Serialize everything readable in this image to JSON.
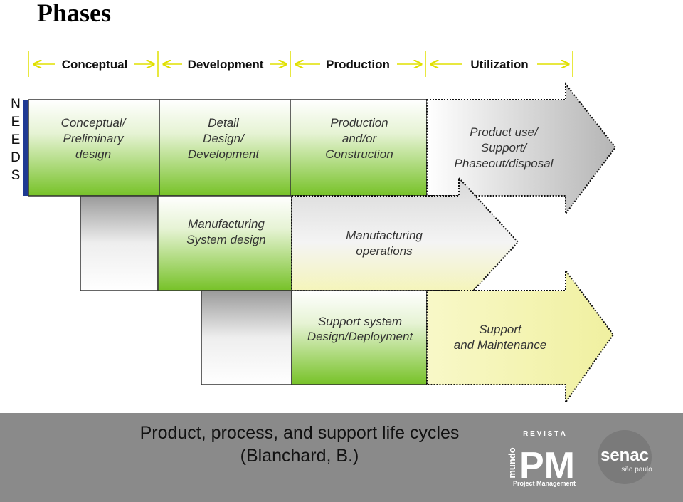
{
  "header": {
    "title": "Phases"
  },
  "phases": [
    "Conceptual",
    "Development",
    "Production",
    "Utilization"
  ],
  "needs": [
    "N",
    "E",
    "E",
    "D",
    "S"
  ],
  "rows": [
    {
      "boxes": [
        {
          "lines": [
            "Conceptual/",
            "Preliminary",
            "design"
          ]
        },
        {
          "lines": [
            "Detail",
            "Design/",
            "Development"
          ]
        },
        {
          "lines": [
            "Production",
            "and/or",
            "Construction"
          ]
        },
        {
          "lines": [
            "Product use/",
            "Support/",
            "Phaseout/disposal"
          ]
        }
      ]
    },
    {
      "boxes": [
        {
          "lines": [
            "Manufacturing",
            "System design"
          ]
        },
        {
          "lines": [
            "Manufacturing",
            "operations"
          ]
        }
      ]
    },
    {
      "boxes": [
        {
          "lines": [
            "Support system",
            "Design/Deployment"
          ]
        },
        {
          "lines": [
            "Support",
            "and Maintenance"
          ]
        }
      ]
    }
  ],
  "caption": {
    "lines": [
      "Product, process, and support life cycles",
      "(Blanchard, B.)"
    ]
  },
  "logo": {
    "magazine": "R E V I S T A",
    "brand": "mundo",
    "name": "PM",
    "tagline": "Project Management",
    "school": "senac",
    "city": "são paulo"
  }
}
